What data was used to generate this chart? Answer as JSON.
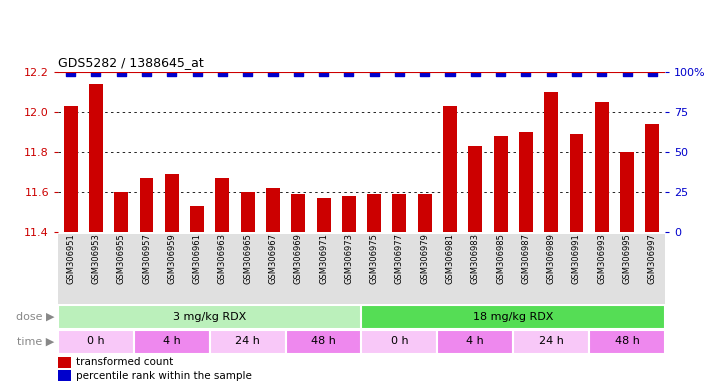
{
  "title": "GDS5282 / 1388645_at",
  "categories": [
    "GSM306951",
    "GSM306953",
    "GSM306955",
    "GSM306957",
    "GSM306959",
    "GSM306961",
    "GSM306963",
    "GSM306965",
    "GSM306967",
    "GSM306969",
    "GSM306971",
    "GSM306973",
    "GSM306975",
    "GSM306977",
    "GSM306979",
    "GSM306981",
    "GSM306983",
    "GSM306985",
    "GSM306987",
    "GSM306989",
    "GSM306991",
    "GSM306993",
    "GSM306995",
    "GSM306997"
  ],
  "bar_values": [
    12.03,
    12.14,
    11.6,
    11.67,
    11.69,
    11.53,
    11.67,
    11.6,
    11.62,
    11.59,
    11.57,
    11.58,
    11.59,
    11.59,
    11.59,
    12.03,
    11.83,
    11.88,
    11.9,
    12.1,
    11.89,
    12.05,
    11.8,
    11.94
  ],
  "bar_color": "#cc0000",
  "percentile_color": "#0000cc",
  "ymin": 11.4,
  "ymax": 12.2,
  "y_ticks": [
    11.4,
    11.6,
    11.8,
    12.0,
    12.2
  ],
  "y2_ticks": [
    0,
    25,
    50,
    75,
    100
  ],
  "y2_tick_labels": [
    "0",
    "25",
    "50",
    "75",
    "100%"
  ],
  "dose_groups": [
    {
      "label": "3 mg/kg RDX",
      "start": 0,
      "end": 12,
      "color": "#bbf0bb"
    },
    {
      "label": "18 mg/kg RDX",
      "start": 12,
      "end": 24,
      "color": "#55dd55"
    }
  ],
  "time_groups": [
    {
      "label": "0 h",
      "start": 0,
      "end": 3,
      "color": "#f8c8f8"
    },
    {
      "label": "4 h",
      "start": 3,
      "end": 6,
      "color": "#ee88ee"
    },
    {
      "label": "24 h",
      "start": 6,
      "end": 9,
      "color": "#f8c8f8"
    },
    {
      "label": "48 h",
      "start": 9,
      "end": 12,
      "color": "#ee88ee"
    },
    {
      "label": "0 h",
      "start": 12,
      "end": 15,
      "color": "#f8c8f8"
    },
    {
      "label": "4 h",
      "start": 15,
      "end": 18,
      "color": "#ee88ee"
    },
    {
      "label": "24 h",
      "start": 18,
      "end": 21,
      "color": "#f8c8f8"
    },
    {
      "label": "48 h",
      "start": 21,
      "end": 24,
      "color": "#ee88ee"
    }
  ],
  "legend_items": [
    {
      "label": "transformed count",
      "color": "#cc0000"
    },
    {
      "label": "percentile rank within the sample",
      "color": "#0000cc"
    }
  ],
  "plot_bg": "#ffffff",
  "xlabel_area_color": "#e0e0e0"
}
